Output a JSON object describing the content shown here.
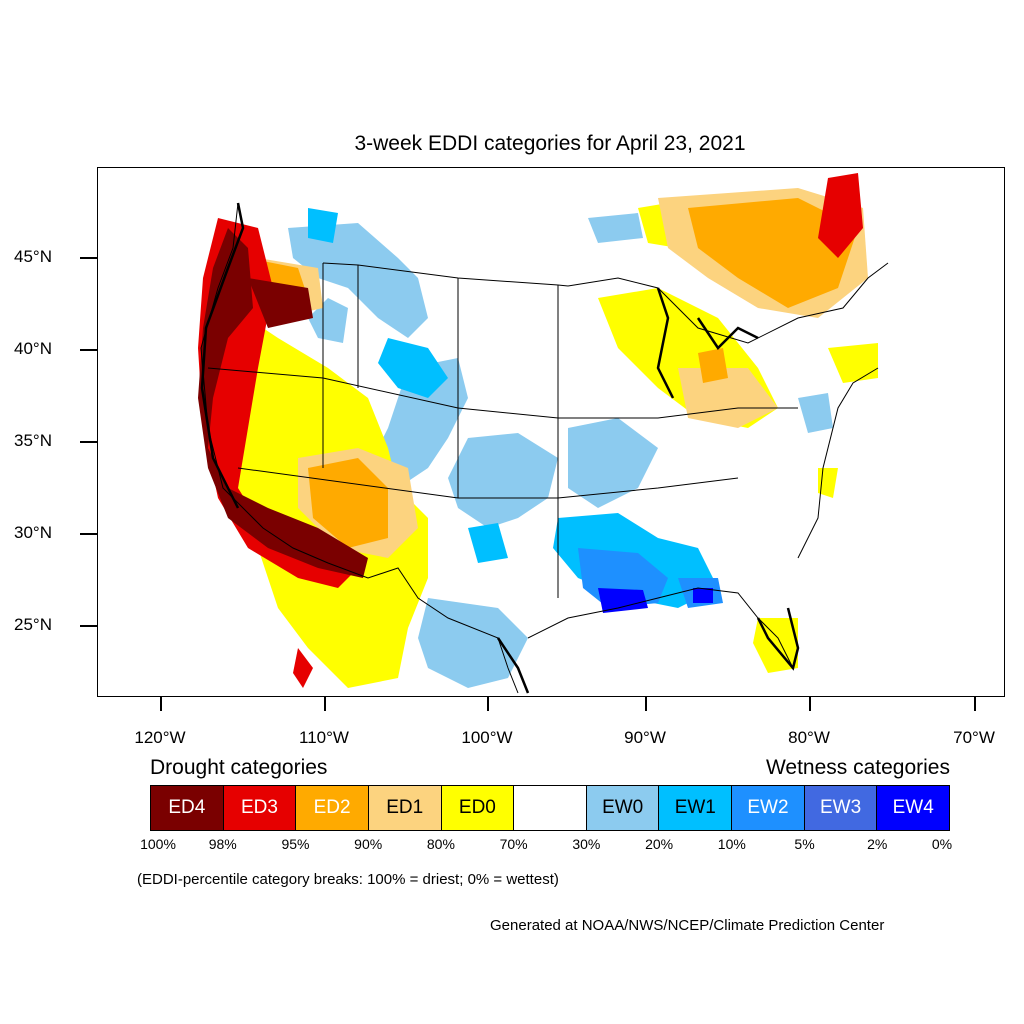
{
  "map": {
    "title": "3-week EDDI categories for April 23, 2021",
    "lat_labels": [
      "45°N",
      "40°N",
      "35°N",
      "30°N",
      "25°N"
    ],
    "lon_labels": [
      "120°W",
      "110°W",
      "100°W",
      "90°W",
      "80°W",
      "70°W"
    ]
  },
  "legend": {
    "drought_heading": "Drought categories",
    "wetness_heading": "Wetness categories",
    "categories": [
      {
        "label": "ED4",
        "color": "#7a0000",
        "text_color": "#ffffff"
      },
      {
        "label": "ED3",
        "color": "#e60000",
        "text_color": "#ffffff"
      },
      {
        "label": "ED2",
        "color": "#ffaa00",
        "text_color": "#ffffff"
      },
      {
        "label": "ED1",
        "color": "#fcd37f",
        "text_color": "#000000"
      },
      {
        "label": "ED0",
        "color": "#ffff00",
        "text_color": "#000000"
      },
      {
        "label": "",
        "color": "#ffffff",
        "text_color": "#000000"
      },
      {
        "label": "EW0",
        "color": "#8ccbef",
        "text_color": "#000000"
      },
      {
        "label": "EW1",
        "color": "#00bfff",
        "text_color": "#000000"
      },
      {
        "label": "EW2",
        "color": "#1e90ff",
        "text_color": "#ffffff"
      },
      {
        "label": "EW3",
        "color": "#4169e1",
        "text_color": "#ffffff"
      },
      {
        "label": "EW4",
        "color": "#0000ff",
        "text_color": "#ffffff"
      }
    ],
    "breaks": [
      "100%",
      "98%",
      "95%",
      "90%",
      "80%",
      "70%",
      "30%",
      "20%",
      "10%",
      "5%",
      "2%",
      "0%"
    ],
    "note": "(EDDI-percentile category breaks: 100% = driest; 0% = wettest)"
  },
  "credit": "Generated at NOAA/NWS/NCEP/Climate Prediction Center"
}
